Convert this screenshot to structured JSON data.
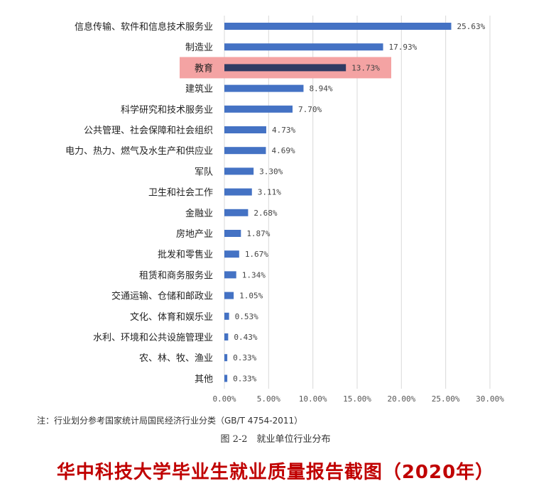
{
  "chart_data": {
    "type": "bar",
    "orientation": "horizontal",
    "categories": [
      "信息传输、软件和信息技术服务业",
      "制造业",
      "教育",
      "建筑业",
      "科学研究和技术服务业",
      "公共管理、社会保障和社会组织",
      "电力、热力、燃气及水生产和供应业",
      "军队",
      "卫生和社会工作",
      "金融业",
      "房地产业",
      "批发和零售业",
      "租赁和商务服务业",
      "交通运输、仓储和邮政业",
      "文化、体育和娱乐业",
      "水利、环境和公共设施管理业",
      "农、林、牧、渔业",
      "其他"
    ],
    "values": [
      25.63,
      17.93,
      13.73,
      8.94,
      7.7,
      4.73,
      4.69,
      3.3,
      3.11,
      2.68,
      1.87,
      1.67,
      1.34,
      1.05,
      0.53,
      0.43,
      0.33,
      0.33
    ],
    "value_labels": [
      "25.63%",
      "17.93%",
      "13.73%",
      "8.94%",
      "7.70%",
      "4.73%",
      "4.69%",
      "3.30%",
      "3.11%",
      "2.68%",
      "1.87%",
      "1.67%",
      "1.34%",
      "1.05%",
      "0.53%",
      "0.43%",
      "0.33%",
      "0.33%"
    ],
    "xlim": [
      0,
      30
    ],
    "x_ticks": [
      0,
      5,
      10,
      15,
      20,
      25,
      30
    ],
    "x_tick_labels": [
      "0.00%",
      "5.00%",
      "10.00%",
      "15.00%",
      "20.00%",
      "25.00%",
      "30.00%"
    ],
    "grid": true,
    "highlighted_category": "教育",
    "colors": {
      "bar": "#4472c4",
      "highlight_bar": "#2f3b63",
      "highlight_band": "#f4a3a3",
      "grid": "#d9d9d9"
    }
  },
  "note": "注：行业划分参考国家统计局国民经济行业分类（GB/T 4754-2011）",
  "caption": "图 2-2　就业单位行业分布",
  "overlay_title": "华中科技大学毕业生就业质量报告截图（2020年）"
}
